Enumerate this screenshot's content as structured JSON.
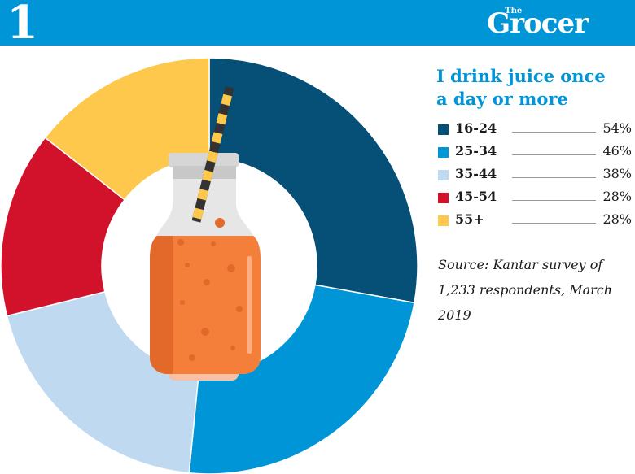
{
  "header": {
    "number": "1",
    "brand_small": "The",
    "brand_name": "Grocer"
  },
  "title_lines": [
    "I drink juice once",
    "a day or more"
  ],
  "colors": {
    "header": "#0095d6",
    "title": "#0095d6"
  },
  "chart_data": {
    "type": "pie",
    "style": "donut",
    "title": "I drink juice once a day or more",
    "categories": [
      "16-24",
      "25-34",
      "35-44",
      "45-54",
      "55+"
    ],
    "values": [
      54,
      46,
      38,
      28,
      28
    ],
    "value_labels": [
      "54%",
      "46%",
      "38%",
      "28%",
      "28%"
    ],
    "colors": [
      "#064f77",
      "#0095d6",
      "#bfd9f1",
      "#d2122b",
      "#fec84d"
    ],
    "legend_position": "right"
  },
  "source": "Source: Kantar survey of 1,233 respondents, March 2019",
  "illustration": {
    "icon": "juice-bottle-icon"
  }
}
